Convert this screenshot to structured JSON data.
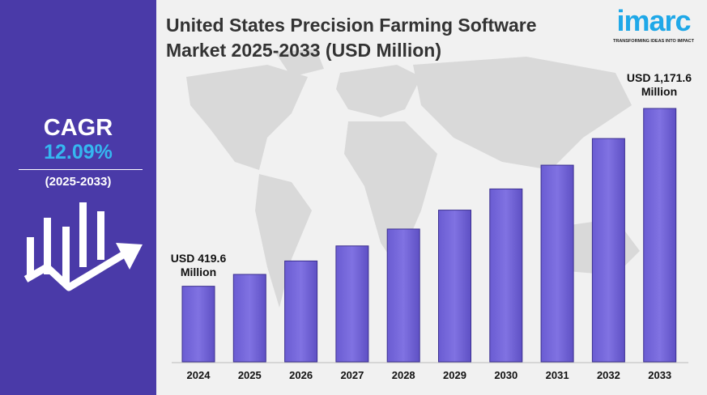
{
  "title": "United States Precision Farming Software Market 2025-2033 (USD Million)",
  "brand": {
    "name": "imarc",
    "tagline": "TRANSFORMING IDEAS INTO IMPACT",
    "color": "#1fa8e8"
  },
  "cagr": {
    "label": "CAGR",
    "value": "12.09%",
    "period": "(2025-2033)"
  },
  "colors": {
    "panel": "#4a3aa8",
    "bar": "#7b6ee0",
    "cagr_value": "#35b7f0"
  },
  "chart_data": {
    "type": "bar",
    "title": "United States Precision Farming Software Market 2025-2033 (USD Million)",
    "categories": [
      "2024",
      "2025",
      "2026",
      "2027",
      "2028",
      "2029",
      "2030",
      "2031",
      "2032",
      "2033"
    ],
    "values": [
      419.6,
      469.7,
      526.5,
      590.2,
      661.6,
      741.6,
      831.2,
      931.7,
      1044.4,
      1171.6
    ],
    "annotations": {
      "first": "USD 419.6 Million",
      "last": "USD 1,171.6 Million"
    },
    "first_label": {
      "line1": "USD 419.6",
      "line2": "Million"
    },
    "last_label": {
      "line1": "USD 1,171.6",
      "line2": "Million"
    },
    "grid": false,
    "legend": "none"
  }
}
